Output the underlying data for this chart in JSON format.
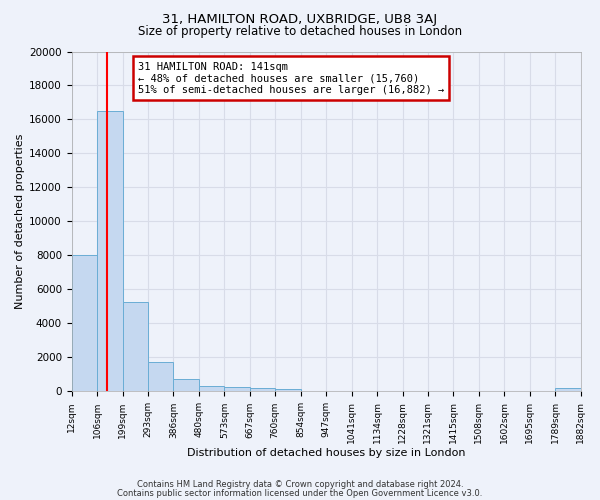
{
  "title_line1": "31, HAMILTON ROAD, UXBRIDGE, UB8 3AJ",
  "title_line2": "Size of property relative to detached houses in London",
  "xlabel": "Distribution of detached houses by size in London",
  "ylabel": "Number of detached properties",
  "bar_edges": [
    12,
    106,
    199,
    293,
    386,
    480,
    573,
    667,
    760,
    854,
    947,
    1041,
    1134,
    1228,
    1321,
    1415,
    1508,
    1602,
    1695,
    1789,
    1882
  ],
  "bar_heights": [
    8000,
    16500,
    5250,
    1750,
    750,
    300,
    250,
    200,
    150,
    0,
    0,
    0,
    0,
    0,
    0,
    0,
    0,
    0,
    0,
    200
  ],
  "bar_color": "#c5d8f0",
  "bar_edge_color": "#6aadd5",
  "red_line_x": 141,
  "ylim": [
    0,
    20000
  ],
  "yticks": [
    0,
    2000,
    4000,
    6000,
    8000,
    10000,
    12000,
    14000,
    16000,
    18000,
    20000
  ],
  "annotation_title": "31 HAMILTON ROAD: 141sqm",
  "annotation_line1": "← 48% of detached houses are smaller (15,760)",
  "annotation_line2": "51% of semi-detached houses are larger (16,882) →",
  "annotation_box_facecolor": "#ffffff",
  "annotation_box_edgecolor": "#cc0000",
  "footer_line1": "Contains HM Land Registry data © Crown copyright and database right 2024.",
  "footer_line2": "Contains public sector information licensed under the Open Government Licence v3.0.",
  "background_color": "#eef2fa",
  "grid_color": "#d8dce8",
  "tick_labels": [
    "12sqm",
    "106sqm",
    "199sqm",
    "293sqm",
    "386sqm",
    "480sqm",
    "573sqm",
    "667sqm",
    "760sqm",
    "854sqm",
    "947sqm",
    "1041sqm",
    "1134sqm",
    "1228sqm",
    "1321sqm",
    "1415sqm",
    "1508sqm",
    "1602sqm",
    "1695sqm",
    "1789sqm",
    "1882sqm"
  ]
}
